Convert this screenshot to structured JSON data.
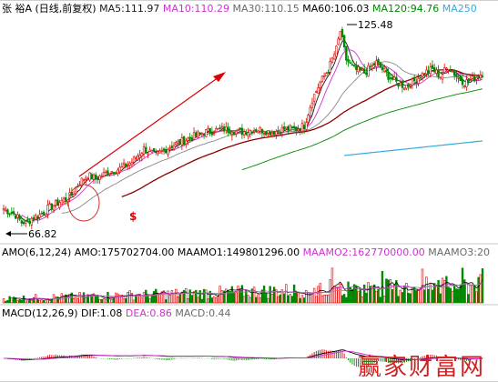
{
  "header": {
    "items": [
      {
        "text": "张  裕A (日线,前复权)",
        "color": "#000000"
      },
      {
        "text": "MA5:111.97",
        "color": "#1a1a1a"
      },
      {
        "text": "MA10:110.29",
        "color": "#cc33cc"
      },
      {
        "text": "MA30:110.15",
        "color": "#6a6a6a"
      },
      {
        "text": "MA60:106.03",
        "color": "#000000"
      },
      {
        "text": "MA120:94.76",
        "color": "#008800"
      },
      {
        "text": "MA250",
        "color": "#33aadd"
      }
    ]
  },
  "amo_header": {
    "items": [
      {
        "text": "AMO(6,12,24)",
        "color": "#000000"
      },
      {
        "text": "AMO:175702704.00",
        "color": "#000000"
      },
      {
        "text": "MAAMO1:149801296.00",
        "color": "#000000"
      },
      {
        "text": "MAAMO2:162770000.00",
        "color": "#cc33cc"
      },
      {
        "text": "MAAMO3:20",
        "color": "#6a6a6a"
      }
    ]
  },
  "macd_header": {
    "items": [
      {
        "text": "MACD(12,26,9)",
        "color": "#000000"
      },
      {
        "text": "DIF:1.08",
        "color": "#000000"
      },
      {
        "text": "DEA:0.86",
        "color": "#cc33cc"
      },
      {
        "text": "MACD:0.44",
        "color": "#6a6a6a"
      }
    ]
  },
  "annotations": {
    "high_label": "125.48",
    "low_label": "66.82",
    "marker_symbol": "$"
  },
  "watermark": "赢家财富网",
  "colors": {
    "up": "#dd0000",
    "down": "#008800",
    "ma5": "#1a1a1a",
    "ma10": "#cc33cc",
    "ma30": "#888888",
    "ma60": "#8b0000",
    "ma120": "#008800",
    "ma250": "#33aadd",
    "trend_arrow": "#dd0000",
    "circle": "#cc3333"
  },
  "chart_data": {
    "type": "candlestick",
    "y_range": [
      63,
      130
    ],
    "ma250_range": [
      88.0,
      92.4
    ],
    "price_path": [
      [
        0,
        72
      ],
      [
        6,
        70
      ],
      [
        10,
        67
      ],
      [
        14,
        69
      ],
      [
        18,
        70
      ],
      [
        22,
        72
      ],
      [
        28,
        74
      ],
      [
        34,
        76
      ],
      [
        38,
        80
      ],
      [
        42,
        82
      ],
      [
        46,
        81
      ],
      [
        52,
        83
      ],
      [
        58,
        84
      ],
      [
        64,
        86
      ],
      [
        70,
        90
      ],
      [
        76,
        88
      ],
      [
        84,
        91
      ],
      [
        92,
        93
      ],
      [
        100,
        95
      ],
      [
        110,
        96
      ],
      [
        118,
        95
      ],
      [
        126,
        96
      ],
      [
        134,
        95
      ],
      [
        140,
        96
      ],
      [
        146,
        96
      ],
      [
        150,
        97
      ],
      [
        154,
        105
      ],
      [
        158,
        110
      ],
      [
        162,
        114
      ],
      [
        166,
        120
      ],
      [
        168,
        125.48
      ],
      [
        171,
        117
      ],
      [
        175,
        114
      ],
      [
        180,
        113
      ],
      [
        186,
        116
      ],
      [
        192,
        112
      ],
      [
        196,
        110
      ],
      [
        200,
        109
      ],
      [
        204,
        110
      ],
      [
        210,
        113
      ],
      [
        214,
        114
      ],
      [
        218,
        112
      ],
      [
        222,
        115
      ],
      [
        226,
        112
      ],
      [
        230,
        110
      ],
      [
        234,
        111
      ],
      [
        239,
        113
      ]
    ],
    "high": 125.48,
    "low": 66.82,
    "ma_periods": [
      5,
      10,
      30,
      60,
      120
    ]
  }
}
